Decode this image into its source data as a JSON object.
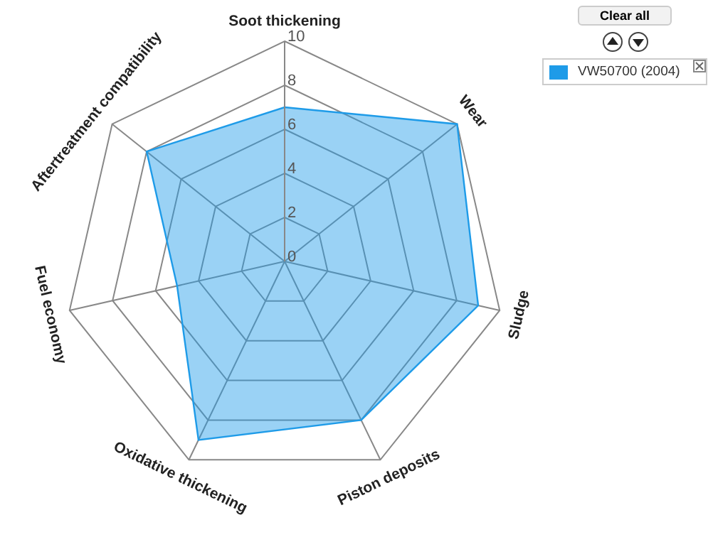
{
  "chart_data": {
    "type": "radar",
    "categories": [
      "Soot thickening",
      "Wear",
      "Sludge",
      "Piston deposits",
      "Oxidative thickening",
      "Fuel economy",
      "Aftertreatment compatibility"
    ],
    "series": [
      {
        "name": "VW50700 (2004)",
        "color": "#1e9be8",
        "values": [
          7,
          10,
          9,
          8,
          9,
          5,
          8
        ]
      }
    ],
    "ylim": [
      0,
      10
    ],
    "yticks": [
      0,
      2,
      4,
      6,
      8,
      10
    ],
    "grid": true,
    "legend": "top right",
    "annotations": [
      "Clear all"
    ]
  }
}
